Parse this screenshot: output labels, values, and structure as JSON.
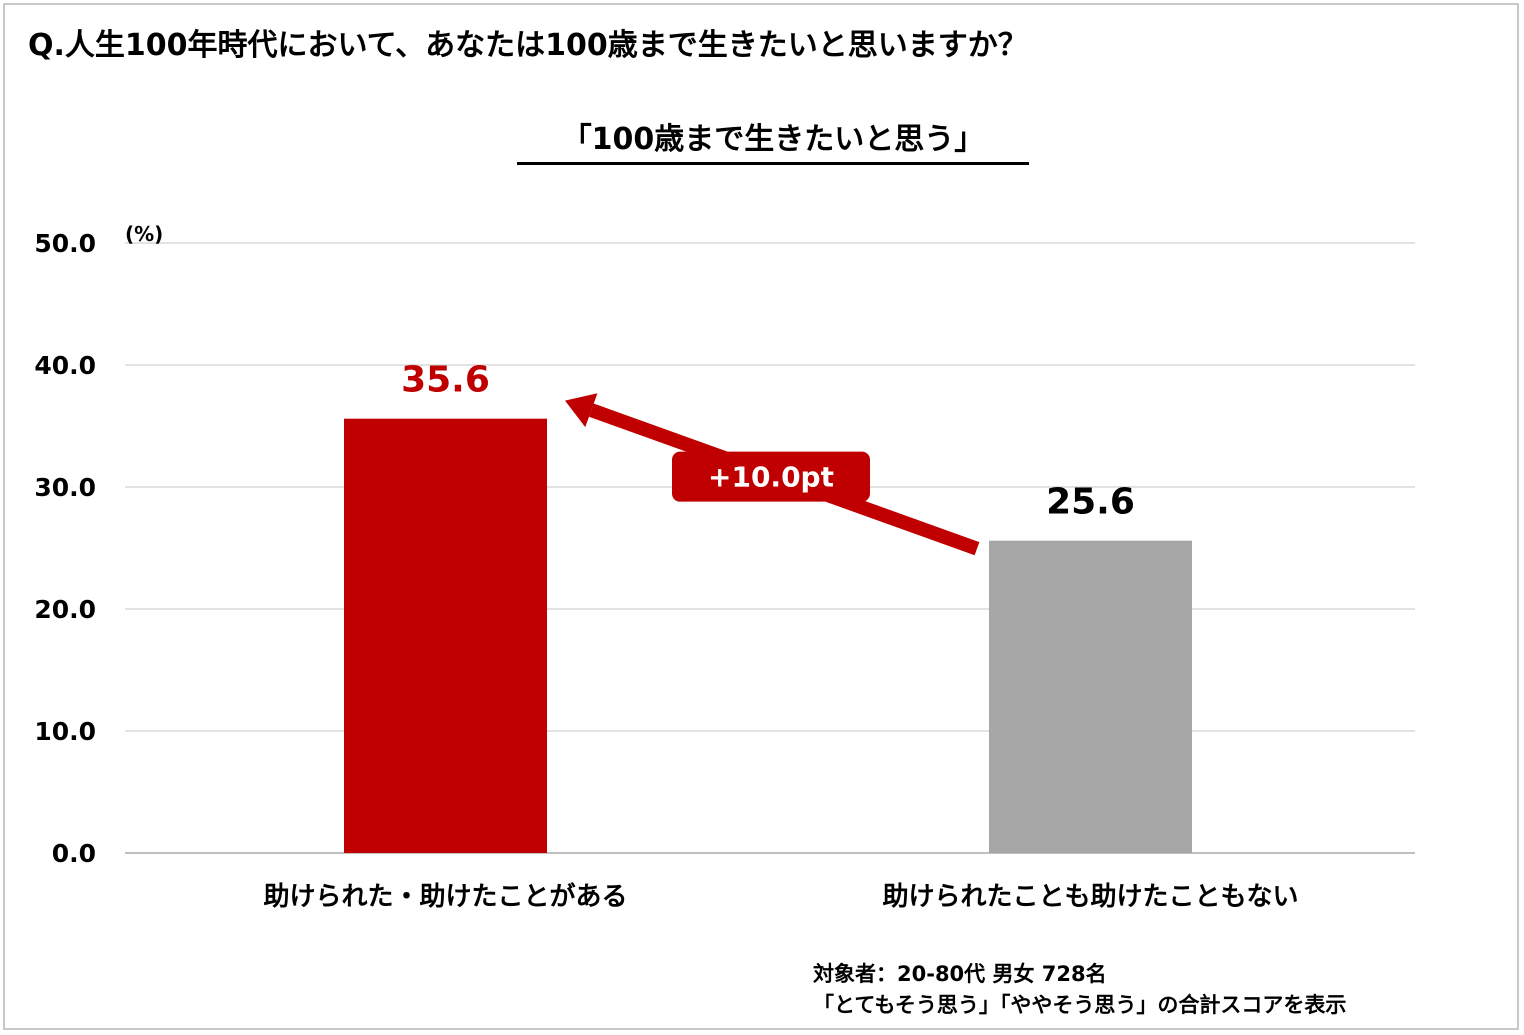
{
  "question": "Q.人生100年時代において、あなたは100歳まで生きたいと思いますか？",
  "chart_data": {
    "type": "bar",
    "title": "「100歳まで生きたいと思う」",
    "unit_label": "(%)",
    "categories": [
      "助けられた・助けたことがある",
      "助けられたことも助けたこともない"
    ],
    "values": [
      35.6,
      25.6
    ],
    "value_labels": [
      "35.6",
      "25.6"
    ],
    "colors": [
      "#c00000",
      "#a6a6a6"
    ],
    "label_colors": [
      "#c00000",
      "#000000"
    ],
    "ylim": [
      0,
      50
    ],
    "yticks": [
      "0.0",
      "10.0",
      "20.0",
      "30.0",
      "40.0",
      "50.0"
    ],
    "grid": true,
    "annotation": {
      "text": "+10.0pt",
      "color": "#c00000"
    }
  },
  "notes": {
    "line1": "対象者：20-80代 男女 728名",
    "line2": "「とてもそう思う」「ややそう思う」の合計スコアを表示"
  }
}
